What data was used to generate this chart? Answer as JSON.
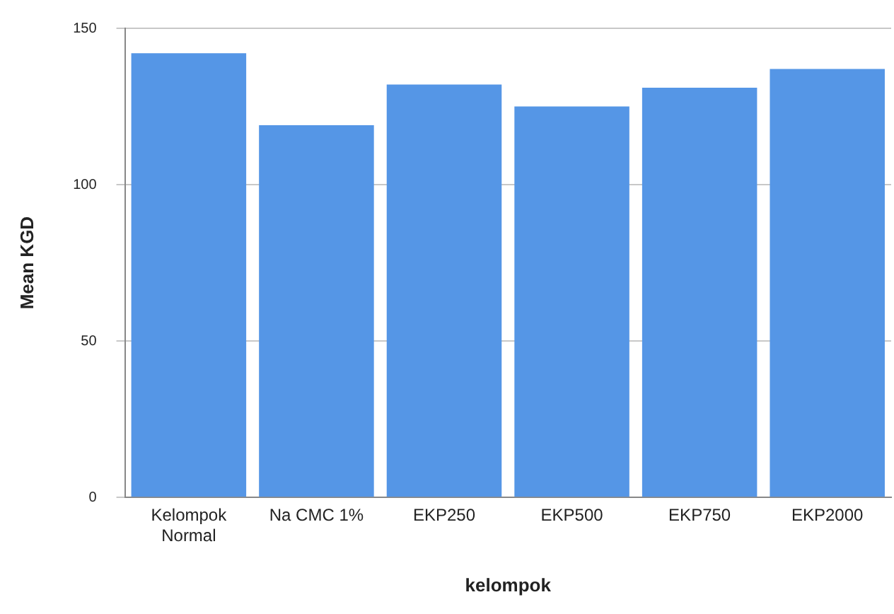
{
  "chart_data": {
    "type": "bar",
    "xlabel": "kelompok",
    "ylabel": "Mean KGD",
    "categories": [
      "Kelompok Normal",
      "Na CMC 1%",
      "EKP250",
      "EKP500",
      "EKP750",
      "EKP2000"
    ],
    "values": [
      142,
      119,
      132,
      125,
      131,
      137
    ],
    "color": "#5596e6",
    "ylim": [
      0,
      150
    ],
    "yticks": [
      0,
      50,
      100,
      150
    ],
    "grid": "y"
  }
}
